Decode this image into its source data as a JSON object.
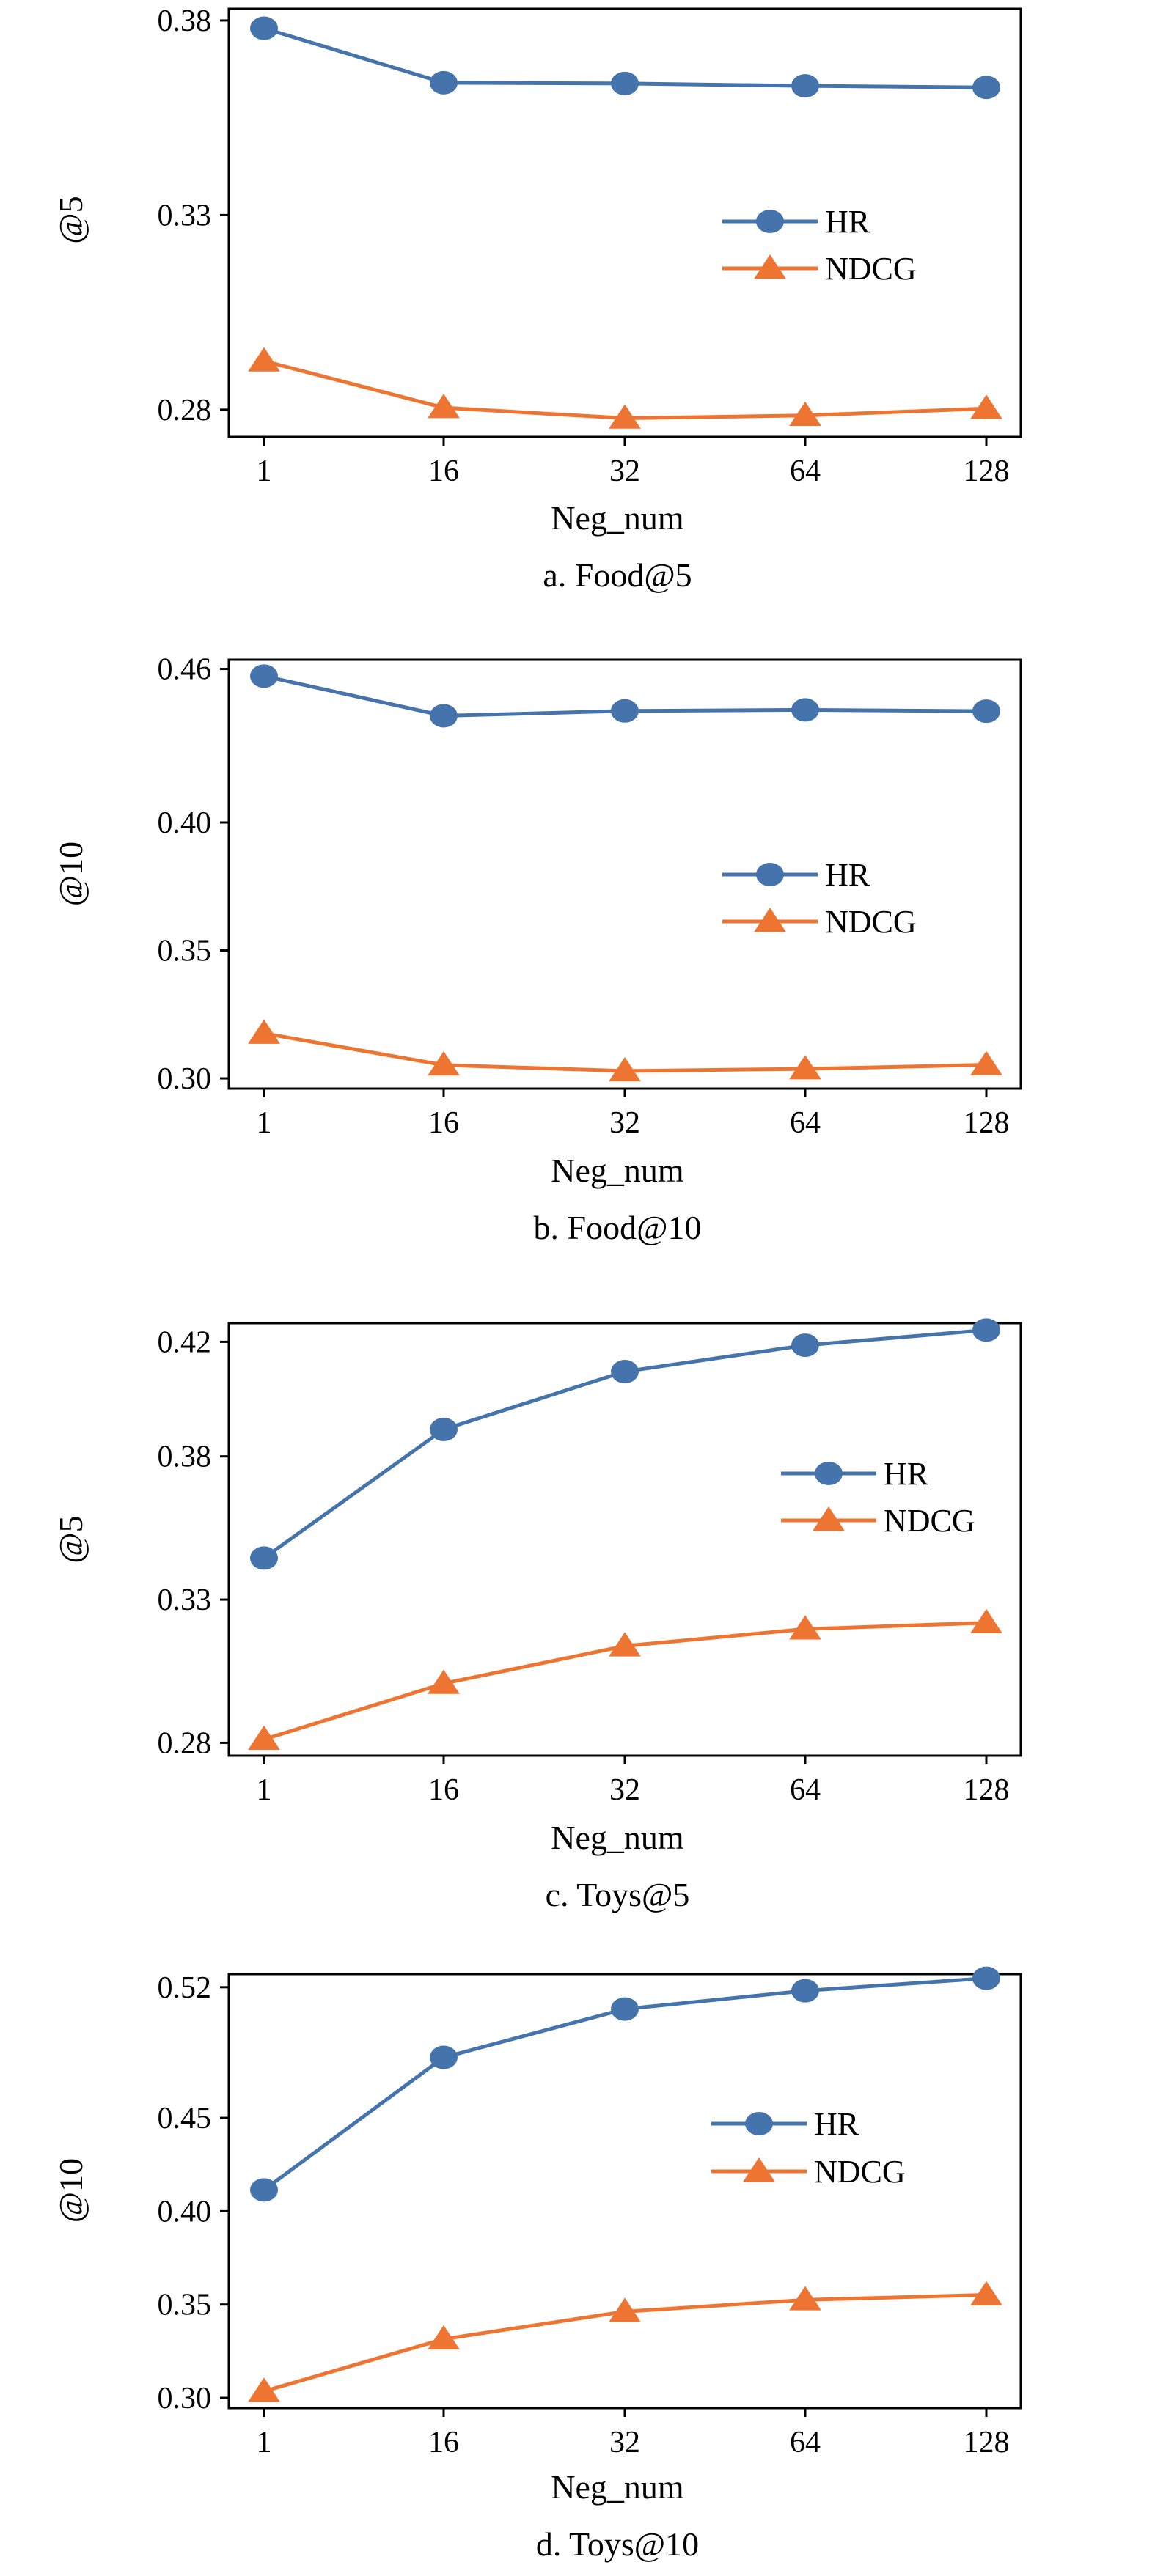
{
  "chart_data": [
    {
      "type": "line",
      "caption": "a. Food@5",
      "xlabel": "Neg_num",
      "ylabel": "@5",
      "categories": [
        "1",
        "16",
        "32",
        "64",
        "128"
      ],
      "yticks": [
        "0.28",
        "0.33",
        "0.38"
      ],
      "ylim": [
        0.273,
        0.383
      ],
      "legend": "center-right",
      "series": [
        {
          "name": "HR",
          "values": [
            0.378,
            0.364,
            0.3638,
            0.3632,
            0.3628
          ],
          "color": "#4573ac",
          "marker": "circle"
        },
        {
          "name": "NDCG",
          "values": [
            0.2925,
            0.2805,
            0.2778,
            0.2785,
            0.2803
          ],
          "color": "#ed7531",
          "marker": "triangle"
        }
      ]
    },
    {
      "type": "line",
      "caption": "b. Food@10",
      "xlabel": "Neg_num",
      "ylabel": "@10",
      "categories": [
        "1",
        "16",
        "32",
        "64",
        "128"
      ],
      "yticks": [
        "0.30",
        "0.35",
        "0.40",
        "0.46"
      ],
      "ylim": [
        0.296,
        0.4636
      ],
      "legend": "center-right",
      "series": [
        {
          "name": "HR",
          "values": [
            0.4572,
            0.4417,
            0.4436,
            0.444,
            0.4435
          ],
          "color": "#4573ac",
          "marker": "circle"
        },
        {
          "name": "NDCG",
          "values": [
            0.3176,
            0.3052,
            0.3029,
            0.3037,
            0.3053
          ],
          "color": "#ed7531",
          "marker": "triangle"
        }
      ]
    },
    {
      "type": "line",
      "caption": "c. Toys@5",
      "xlabel": "Neg_num",
      "ylabel": "@5",
      "categories": [
        "1",
        "16",
        "32",
        "64",
        "128"
      ],
      "yticks": [
        "0.28",
        "0.33",
        "0.38",
        "0.42"
      ],
      "ylim": [
        0.2755,
        0.4265
      ],
      "legend": "center-right",
      "series": [
        {
          "name": "HR",
          "values": [
            0.3445,
            0.3894,
            0.4096,
            0.4188,
            0.4241
          ],
          "color": "#4573ac",
          "marker": "circle"
        },
        {
          "name": "NDCG",
          "values": [
            0.2812,
            0.3007,
            0.3138,
            0.3197,
            0.3219
          ],
          "color": "#ed7531",
          "marker": "triangle"
        }
      ]
    },
    {
      "type": "line",
      "caption": "d. Toys@10",
      "xlabel": "Neg_num",
      "ylabel": "@10",
      "categories": [
        "1",
        "16",
        "32",
        "64",
        "128"
      ],
      "yticks": [
        "0.30",
        "0.35",
        "0.40",
        "0.45",
        "0.52"
      ],
      "ylim": [
        0.2945,
        0.527
      ],
      "legend": "center-right",
      "series": [
        {
          "name": "HR",
          "values": [
            0.4114,
            0.4824,
            0.5083,
            0.5181,
            0.5248
          ],
          "color": "#4573ac",
          "marker": "circle"
        },
        {
          "name": "NDCG",
          "values": [
            0.3035,
            0.3315,
            0.3462,
            0.3525,
            0.3552
          ],
          "color": "#ed7531",
          "marker": "triangle"
        }
      ]
    }
  ]
}
